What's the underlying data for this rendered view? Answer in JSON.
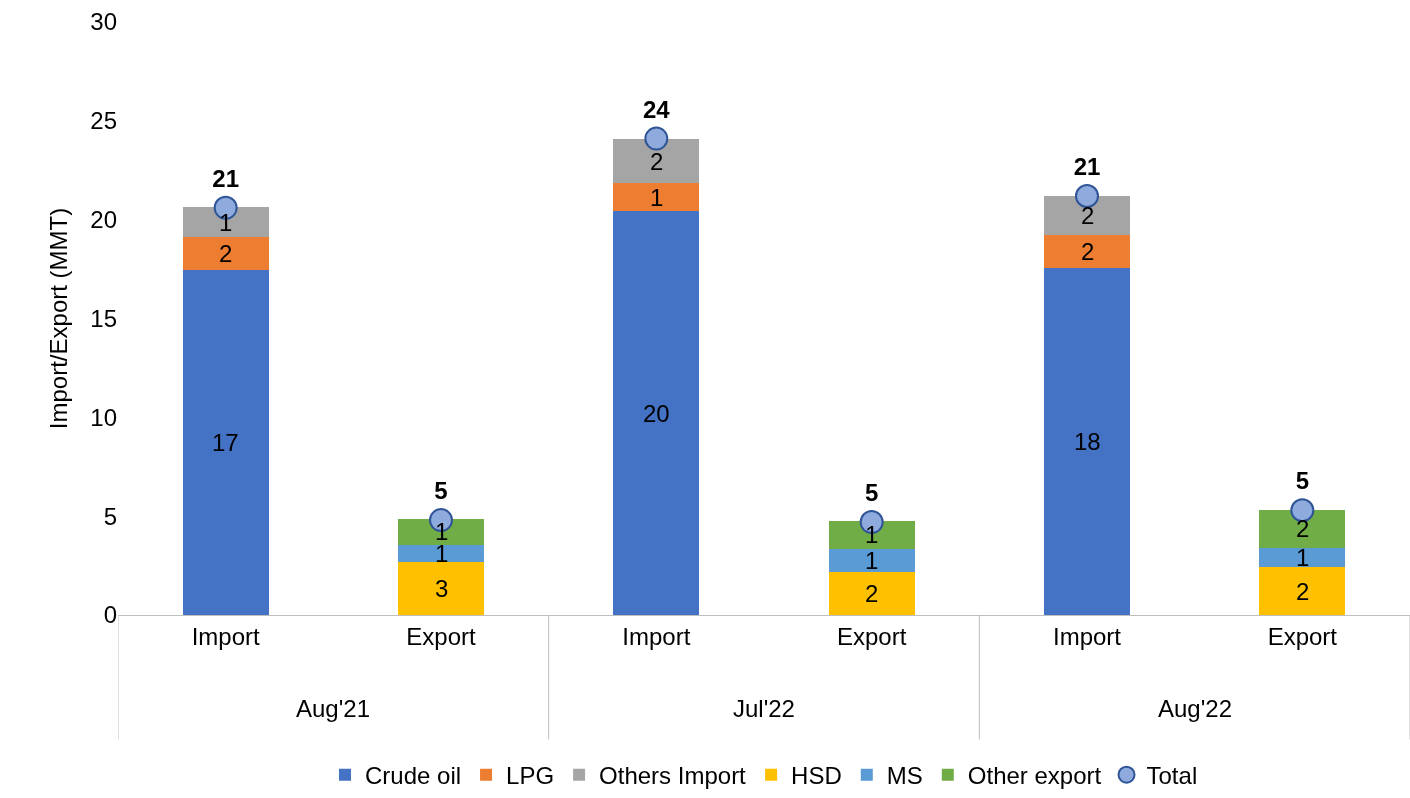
{
  "chart_data": {
    "type": "bar",
    "stacked": true,
    "ylabel": "Import/Export (MMT)",
    "categories": [
      "Import",
      "Export",
      "Import",
      "Export",
      "Import",
      "Export"
    ],
    "annotations": [
      "Aug'21",
      "Jul'22",
      "Aug'22"
    ],
    "series": [
      {
        "name": "Crude oil",
        "color": "#4472c4",
        "values": [
          17.46,
          null,
          20.42,
          null,
          17.56,
          null
        ],
        "value_labels": [
          "17",
          null,
          "20",
          null,
          "18",
          null
        ]
      },
      {
        "name": "LPG",
        "color": "#ed7d31",
        "values": [
          1.66,
          null,
          1.41,
          null,
          1.66,
          null
        ],
        "value_labels": [
          "2",
          null,
          "1",
          null,
          "2",
          null
        ]
      },
      {
        "name": "Others Import",
        "color": "#a5a5a5",
        "values": [
          1.5,
          null,
          2.25,
          null,
          2.0,
          null
        ],
        "value_labels": [
          "1",
          null,
          "2",
          null,
          "2",
          null
        ]
      },
      {
        "name": "HSD",
        "color": "#ffc000",
        "values": [
          null,
          2.66,
          null,
          2.2,
          null,
          2.41
        ],
        "value_labels": [
          null,
          "3",
          null,
          "2",
          null,
          "2"
        ]
      },
      {
        "name": "MS",
        "color": "#5b9bd5",
        "values": [
          null,
          0.9,
          null,
          1.16,
          null,
          1.0
        ],
        "value_labels": [
          null,
          "1",
          null,
          "1",
          null,
          "1"
        ]
      },
      {
        "name": "Other export",
        "color": "#70ad47",
        "values": [
          null,
          1.31,
          null,
          1.41,
          null,
          1.91
        ],
        "value_labels": [
          null,
          "1",
          null,
          "1",
          null,
          "2"
        ]
      },
      {
        "name": "Total",
        "type": "scatter",
        "marker": "circle",
        "color": "#8faadc",
        "values": [
          20.6,
          4.8,
          24.1,
          4.7,
          21.2,
          5.3
        ],
        "value_labels": [
          "21",
          "5",
          "24",
          "5",
          "21",
          "5"
        ]
      }
    ],
    "ylim": [
      0,
      30
    ],
    "yticks": [
      0,
      5,
      10,
      15,
      20,
      25,
      30
    ],
    "grid": false,
    "legend": "bottom"
  }
}
